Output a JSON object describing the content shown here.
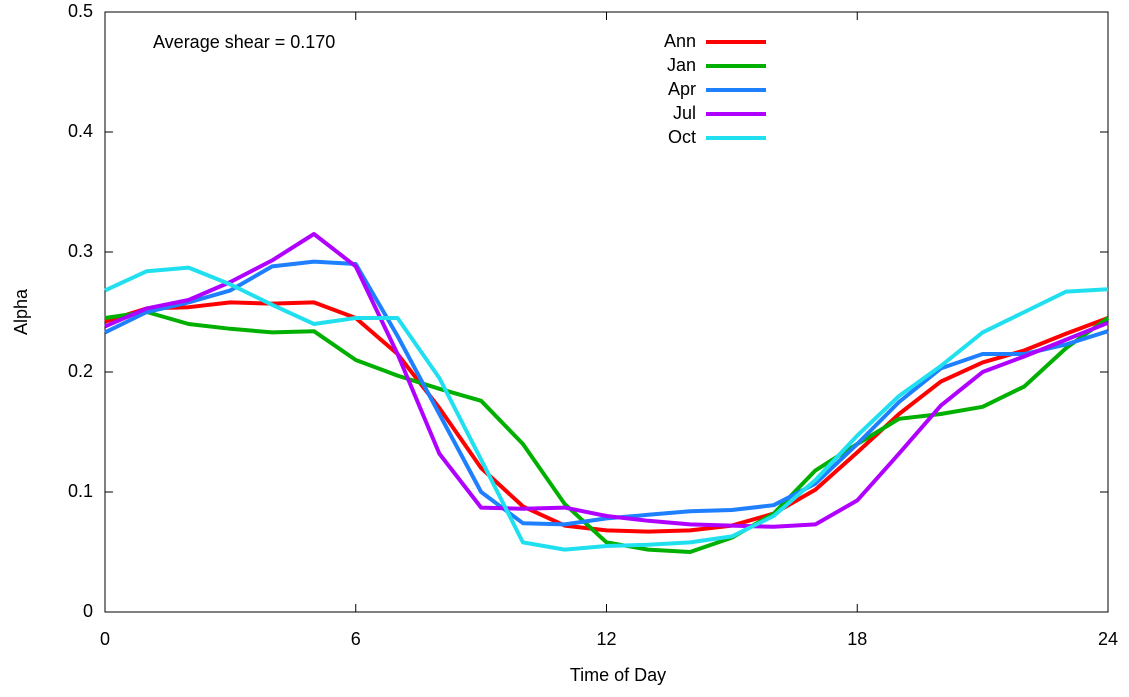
{
  "chart_data": {
    "type": "line",
    "x_label": "Time of Day",
    "y_label": "Alpha",
    "annotation": "Average shear = 0.170",
    "x": [
      0,
      1,
      2,
      3,
      4,
      5,
      6,
      7,
      8,
      9,
      10,
      11,
      12,
      13,
      14,
      15,
      16,
      17,
      18,
      19,
      20,
      21,
      22,
      23,
      24
    ],
    "series": [
      {
        "name": "Ann",
        "color": "#ff0000",
        "values": [
          0.242,
          0.253,
          0.254,
          0.258,
          0.257,
          0.258,
          0.245,
          0.215,
          0.17,
          0.12,
          0.088,
          0.072,
          0.068,
          0.067,
          0.068,
          0.072,
          0.082,
          0.102,
          0.133,
          0.165,
          0.192,
          0.208,
          0.218,
          0.232,
          0.245
        ]
      },
      {
        "name": "Jan",
        "color": "#00b000",
        "values": [
          0.245,
          0.25,
          0.24,
          0.236,
          0.233,
          0.234,
          0.21,
          0.197,
          0.186,
          0.176,
          0.14,
          0.09,
          0.058,
          0.052,
          0.05,
          0.062,
          0.082,
          0.118,
          0.14,
          0.161,
          0.165,
          0.171,
          0.188,
          0.22,
          0.245
        ]
      },
      {
        "name": "Apr",
        "color": "#1e7fff",
        "values": [
          0.233,
          0.25,
          0.258,
          0.268,
          0.288,
          0.292,
          0.29,
          0.23,
          0.165,
          0.1,
          0.074,
          0.073,
          0.078,
          0.081,
          0.084,
          0.085,
          0.089,
          0.107,
          0.14,
          0.175,
          0.203,
          0.215,
          0.215,
          0.223,
          0.234
        ]
      },
      {
        "name": "Jul",
        "color": "#b000ff",
        "values": [
          0.238,
          0.253,
          0.26,
          0.275,
          0.293,
          0.315,
          0.288,
          0.215,
          0.132,
          0.087,
          0.086,
          0.087,
          0.08,
          0.076,
          0.073,
          0.072,
          0.071,
          0.073,
          0.093,
          0.132,
          0.172,
          0.2,
          0.213,
          0.227,
          0.241
        ]
      },
      {
        "name": "Oct",
        "color": "#20e0f0",
        "values": [
          0.268,
          0.284,
          0.287,
          0.273,
          0.256,
          0.24,
          0.245,
          0.245,
          0.195,
          0.127,
          0.058,
          0.052,
          0.055,
          0.056,
          0.058,
          0.063,
          0.08,
          0.11,
          0.147,
          0.18,
          0.205,
          0.233,
          0.25,
          0.267,
          0.269
        ]
      }
    ],
    "xlim": [
      0,
      24
    ],
    "xticks": [
      0,
      6,
      12,
      18,
      24
    ],
    "ylim": [
      0,
      0.5
    ],
    "yticks": [
      0,
      0.1,
      0.2,
      0.3,
      0.4,
      0.5
    ],
    "legend": "top"
  }
}
